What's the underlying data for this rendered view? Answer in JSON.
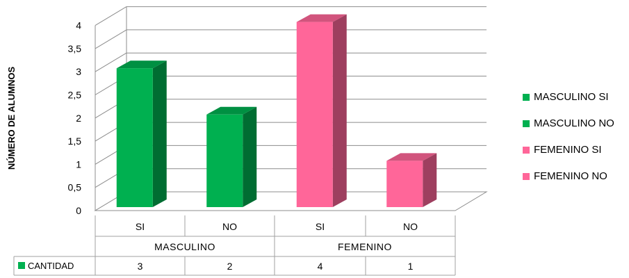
{
  "chart_data": {
    "type": "bar",
    "ylabel": "NÚMERO DE ALUMNOS",
    "ylim": [
      0,
      4
    ],
    "yticks": [
      "0",
      "0,5",
      "1",
      "1,5",
      "2",
      "2,5",
      "3",
      "3,5",
      "4"
    ],
    "grid": true,
    "legend_position": "right",
    "categories": [
      "SI",
      "NO",
      "SI",
      "NO"
    ],
    "groups": [
      {
        "label": "MASCULINO",
        "span": 2
      },
      {
        "label": "FEMENINO",
        "span": 2
      }
    ],
    "series": [
      {
        "name": "CANTIDAD",
        "values": [
          3,
          2,
          4,
          1
        ]
      }
    ],
    "bar_colors": [
      "#00b050",
      "#00b050",
      "#ff6699",
      "#ff6699"
    ],
    "legend": [
      {
        "label": "MASCULINO SI",
        "color": "#00b050"
      },
      {
        "label": "MASCULINO NO",
        "color": "#00b050"
      },
      {
        "label": "FEMENINO SI",
        "color": "#ff6699"
      },
      {
        "label": "FEMENINO NO",
        "color": "#ff6699"
      }
    ],
    "table": {
      "row_label": "CANTIDAD",
      "row_color": "#00b050",
      "values": [
        "3",
        "2",
        "4",
        "1"
      ]
    }
  }
}
